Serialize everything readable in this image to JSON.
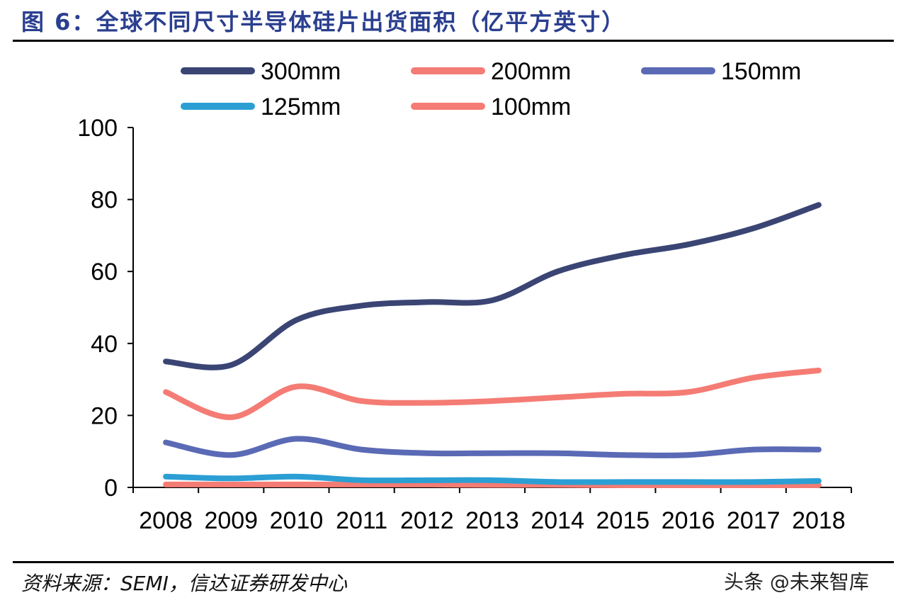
{
  "header": {
    "title": "图 6：全球不同尺寸半导体硅片出货面积（亿平方英寸）"
  },
  "footer": {
    "source": "资料来源：SEMI，信达证券研发中心",
    "watermark": "头条 @未来智库"
  },
  "chart_data": {
    "type": "line",
    "title": "全球不同尺寸半导体硅片出货面积（亿平方英寸）",
    "xlabel": "",
    "ylabel": "",
    "categories": [
      "2008",
      "2009",
      "2010",
      "2011",
      "2012",
      "2013",
      "2014",
      "2015",
      "2016",
      "2017",
      "2018"
    ],
    "ylim": [
      0,
      100
    ],
    "yticks": [
      0,
      20,
      40,
      60,
      80,
      100
    ],
    "grid": false,
    "legend_position": "top",
    "series": [
      {
        "name": "300mm",
        "color": "#3a4574",
        "values": [
          35,
          34,
          46.5,
          50.5,
          51.5,
          52,
          60,
          64.5,
          67.5,
          72,
          78.5
        ]
      },
      {
        "name": "200mm",
        "color": "#f47c74",
        "values": [
          26.5,
          19.5,
          28,
          24,
          23.5,
          24,
          25,
          26,
          26.5,
          30.5,
          32.5
        ]
      },
      {
        "name": "150mm",
        "color": "#5a6ab5",
        "values": [
          12.5,
          9,
          13.5,
          10.5,
          9.5,
          9.5,
          9.5,
          9,
          9,
          10.5,
          10.5
        ]
      },
      {
        "name": "125mm",
        "color": "#2b9fd4",
        "values": [
          3,
          2.5,
          3,
          2,
          2,
          2,
          1.5,
          1.5,
          1.5,
          1.5,
          1.8
        ]
      },
      {
        "name": "100mm",
        "color": "#f47c74",
        "values": [
          0.8,
          0.8,
          0.8,
          0.8,
          0.8,
          0.7,
          0.7,
          0.6,
          0.6,
          0.6,
          0.6
        ]
      }
    ]
  }
}
